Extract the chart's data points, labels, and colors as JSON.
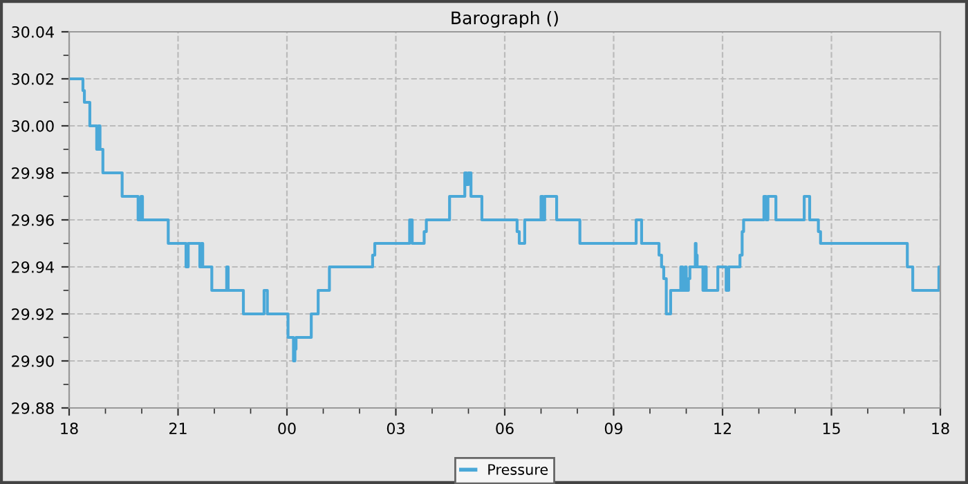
{
  "chart_data": {
    "type": "step",
    "title": "Barograph ()",
    "legend": "bottom",
    "grid": true,
    "line_style": "solid",
    "marker": "none",
    "xlim": [
      18,
      42
    ],
    "ylim": [
      29.88,
      30.04
    ],
    "xticks": [
      {
        "value": 18,
        "label": "18"
      },
      {
        "value": 19,
        "label": null
      },
      {
        "value": 20,
        "label": null
      },
      {
        "value": 21,
        "label": "21"
      },
      {
        "value": 22,
        "label": null
      },
      {
        "value": 23,
        "label": null
      },
      {
        "value": 24,
        "label": "00"
      },
      {
        "value": 25,
        "label": null
      },
      {
        "value": 26,
        "label": null
      },
      {
        "value": 27,
        "label": "03"
      },
      {
        "value": 28,
        "label": null
      },
      {
        "value": 29,
        "label": null
      },
      {
        "value": 30,
        "label": "06"
      },
      {
        "value": 31,
        "label": null
      },
      {
        "value": 32,
        "label": null
      },
      {
        "value": 33,
        "label": "09"
      },
      {
        "value": 34,
        "label": null
      },
      {
        "value": 35,
        "label": null
      },
      {
        "value": 36,
        "label": "12"
      },
      {
        "value": 37,
        "label": null
      },
      {
        "value": 38,
        "label": null
      },
      {
        "value": 39,
        "label": "15"
      },
      {
        "value": 40,
        "label": null
      },
      {
        "value": 41,
        "label": null
      },
      {
        "value": 42,
        "label": "18"
      }
    ],
    "yticks": [
      {
        "value": 29.88,
        "label": "29.88"
      },
      {
        "value": 29.89,
        "label": null
      },
      {
        "value": 29.9,
        "label": "29.90"
      },
      {
        "value": 29.91,
        "label": null
      },
      {
        "value": 29.92,
        "label": "29.92"
      },
      {
        "value": 29.93,
        "label": null
      },
      {
        "value": 29.94,
        "label": "29.94"
      },
      {
        "value": 29.95,
        "label": null
      },
      {
        "value": 29.96,
        "label": "29.96"
      },
      {
        "value": 29.97,
        "label": null
      },
      {
        "value": 29.98,
        "label": "29.98"
      },
      {
        "value": 29.99,
        "label": null
      },
      {
        "value": 30.0,
        "label": "30.00"
      },
      {
        "value": 30.01,
        "label": null
      },
      {
        "value": 30.02,
        "label": "30.02"
      },
      {
        "value": 30.03,
        "label": null
      },
      {
        "value": 30.04,
        "label": "30.04"
      }
    ],
    "series": [
      {
        "name": "Pressure",
        "color": "#4aa8d8",
        "x": [
          18.0,
          18.38,
          18.42,
          18.57,
          18.76,
          18.8,
          18.85,
          18.93,
          19.46,
          19.9,
          19.98,
          20.02,
          20.73,
          21.22,
          21.28,
          21.6,
          21.64,
          21.68,
          21.93,
          22.34,
          22.38,
          22.8,
          23.37,
          23.46,
          24.03,
          24.18,
          24.22,
          24.25,
          24.67,
          24.86,
          25.17,
          26.36,
          26.42,
          27.38,
          27.45,
          27.78,
          27.84,
          28.48,
          28.9,
          28.95,
          29.0,
          29.07,
          29.37,
          30.34,
          30.4,
          30.55,
          31.0,
          31.05,
          31.1,
          31.43,
          32.07,
          33.62,
          33.77,
          34.25,
          34.32,
          34.38,
          34.45,
          34.57,
          34.85,
          34.9,
          34.97,
          35.0,
          35.06,
          35.1,
          35.25,
          35.27,
          35.3,
          35.46,
          35.5,
          35.55,
          35.87,
          36.1,
          36.17,
          36.48,
          36.54,
          36.58,
          37.14,
          37.2,
          37.25,
          37.47,
          38.25,
          38.4,
          38.64,
          38.7,
          41.09,
          41.24,
          41.96,
          42.0
        ],
        "values": [
          30.02,
          30.015,
          30.01,
          30.0,
          29.99,
          30.0,
          29.99,
          29.98,
          29.97,
          29.96,
          29.97,
          29.96,
          29.95,
          29.94,
          29.95,
          29.94,
          29.95,
          29.94,
          29.93,
          29.94,
          29.93,
          29.92,
          29.93,
          29.92,
          29.91,
          29.9,
          29.905,
          29.91,
          29.92,
          29.93,
          29.94,
          29.945,
          29.95,
          29.96,
          29.95,
          29.955,
          29.96,
          29.97,
          29.98,
          29.975,
          29.98,
          29.97,
          29.96,
          29.955,
          29.95,
          29.96,
          29.97,
          29.96,
          29.97,
          29.96,
          29.95,
          29.96,
          29.95,
          29.945,
          29.94,
          29.935,
          29.92,
          29.93,
          29.94,
          29.93,
          29.94,
          29.93,
          29.935,
          29.94,
          29.95,
          29.945,
          29.94,
          29.93,
          29.94,
          29.93,
          29.94,
          29.93,
          29.94,
          29.945,
          29.955,
          29.96,
          29.97,
          29.96,
          29.97,
          29.96,
          29.97,
          29.96,
          29.955,
          29.95,
          29.94,
          29.93,
          29.94,
          29.94
        ]
      }
    ]
  }
}
